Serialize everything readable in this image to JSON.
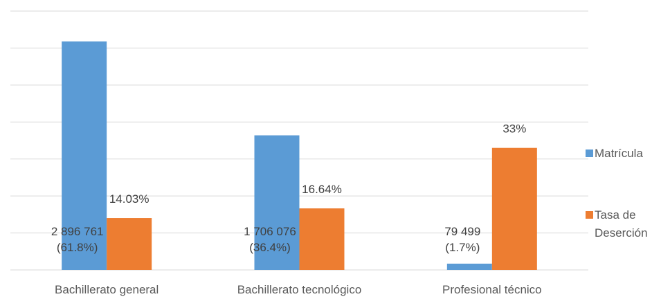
{
  "chart_data": {
    "type": "bar",
    "title": "",
    "xlabel": "",
    "ylabel": "",
    "categories": [
      "Bachillerato general",
      "Bachillerato tecnológico",
      "Profesional técnico"
    ],
    "ylim": [
      0,
      70
    ],
    "grid": true,
    "legend_position": "right",
    "series": [
      {
        "name": "Matrícula",
        "color": "#5B9BD5",
        "values": [
          61.8,
          36.4,
          1.7
        ],
        "labels": [
          [
            "2 896 761",
            "(61.8%)"
          ],
          [
            "1 706 076",
            "(36.4%)"
          ],
          [
            "79 499",
            "(1.7%)"
          ]
        ]
      },
      {
        "name": "Tasa de Deserción",
        "legend_lines": [
          "Tasa de",
          "Deserción"
        ],
        "color": "#ED7D31",
        "values": [
          14.03,
          16.64,
          33
        ],
        "labels": [
          [
            "14.03%"
          ],
          [
            "16.64%"
          ],
          [
            "33%"
          ]
        ]
      }
    ]
  }
}
